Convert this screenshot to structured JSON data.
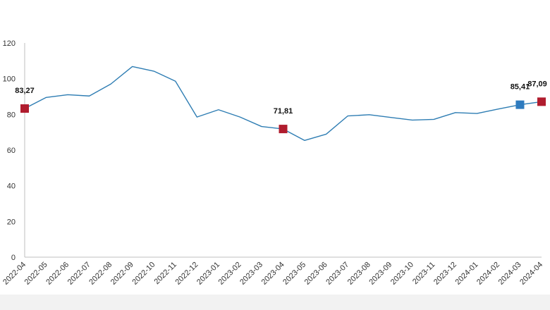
{
  "chart_data": {
    "type": "line",
    "categories": [
      "2022-04",
      "2022-05",
      "2022-06",
      "2022-07",
      "2022-08",
      "2022-09",
      "2022-10",
      "2022-11",
      "2022-12",
      "2023-01",
      "2023-02",
      "2023-03",
      "2023-04",
      "2023-05",
      "2023-06",
      "2023-07",
      "2023-08",
      "2023-09",
      "2023-10",
      "2023-11",
      "2023-12",
      "2024-01",
      "2024-02",
      "2024-03",
      "2024-04"
    ],
    "series": [
      {
        "values": [
          83.27,
          89.5,
          91.0,
          90.3,
          97.0,
          106.8,
          104.2,
          98.6,
          78.5,
          82.6,
          78.5,
          73.2,
          71.81,
          65.4,
          68.9,
          79.1,
          79.8,
          78.3,
          76.8,
          77.2,
          81.0,
          80.5,
          83.0,
          85.41,
          87.09
        ],
        "color": "#2e7db3"
      }
    ],
    "highlighted_points": [
      {
        "index": 0,
        "label": "83,27",
        "color": "#b01c2e"
      },
      {
        "index": 12,
        "label": "71,81",
        "color": "#b01c2e"
      },
      {
        "index": 23,
        "label": "85,41",
        "color": "#2e7bbf"
      },
      {
        "index": 24,
        "label": "87,09",
        "color": "#b01c2e"
      }
    ],
    "yticks": [
      0,
      20,
      40,
      60,
      80,
      100,
      120
    ],
    "ylim": [
      0,
      120
    ],
    "title": "",
    "xlabel": "",
    "ylabel": "",
    "grid": false,
    "colors": {
      "axis": "#bfbfbf",
      "bottom_band": "#f2f2f2"
    }
  }
}
